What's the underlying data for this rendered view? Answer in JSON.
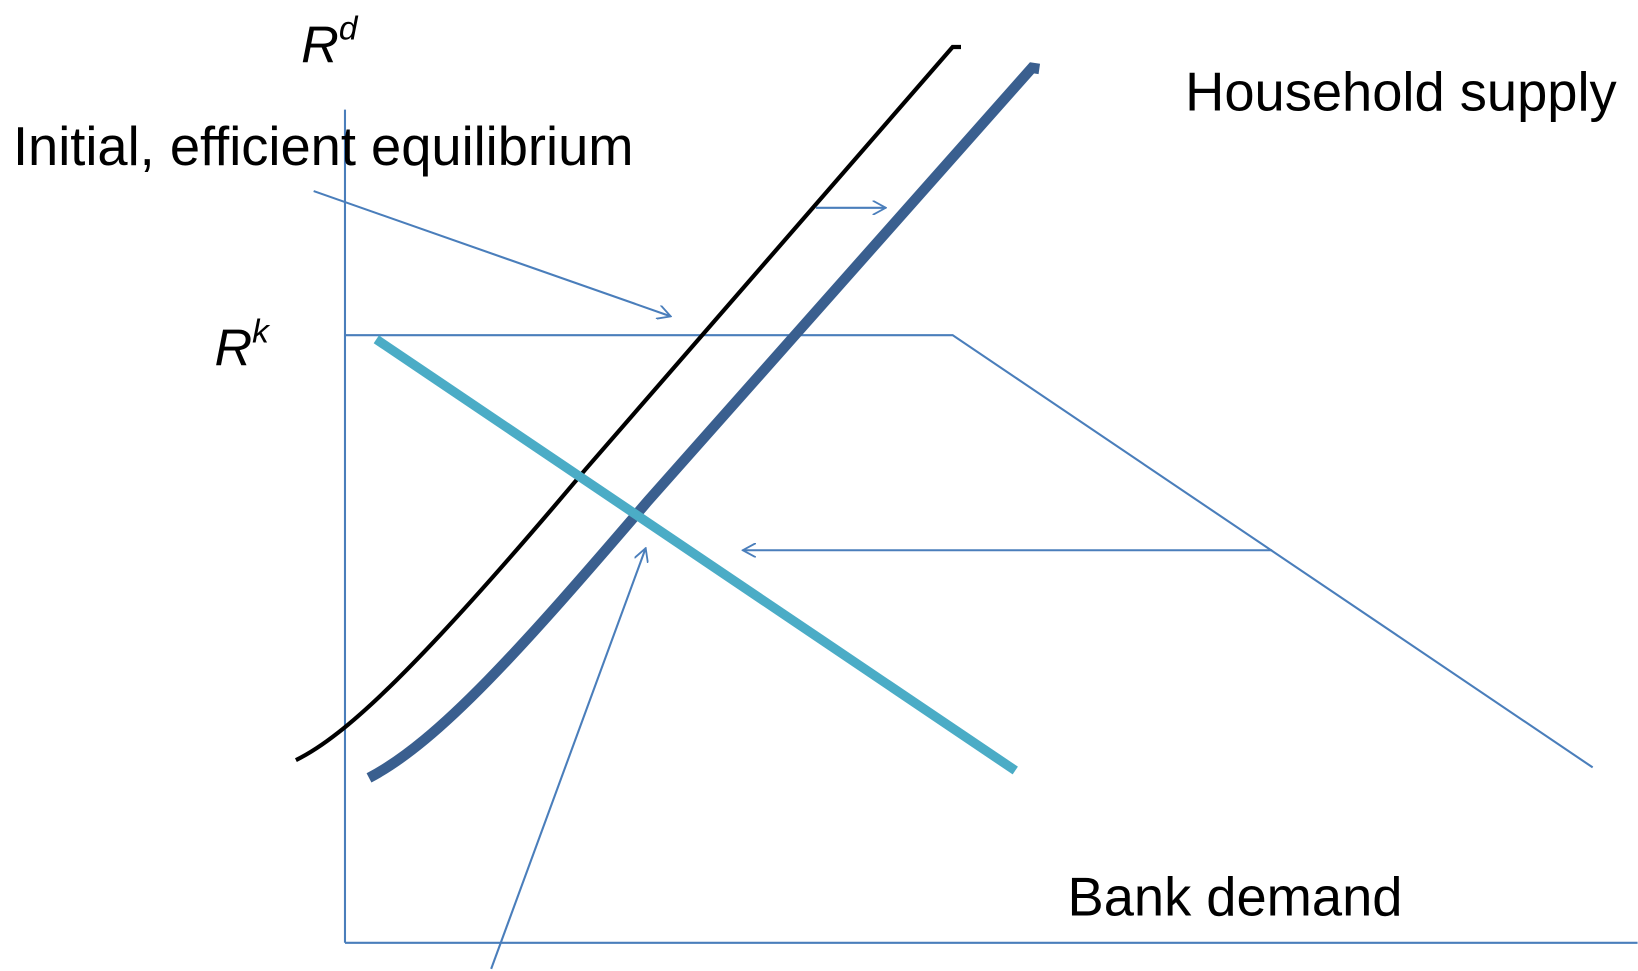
{
  "labels": {
    "y_axis": {
      "base": "R",
      "sup": "d"
    },
    "rate": {
      "base": "R",
      "sup": "k"
    },
    "annotation": "Initial, efficient equilibrium",
    "supply": "Household supply",
    "demand": "Bank demand"
  }
}
